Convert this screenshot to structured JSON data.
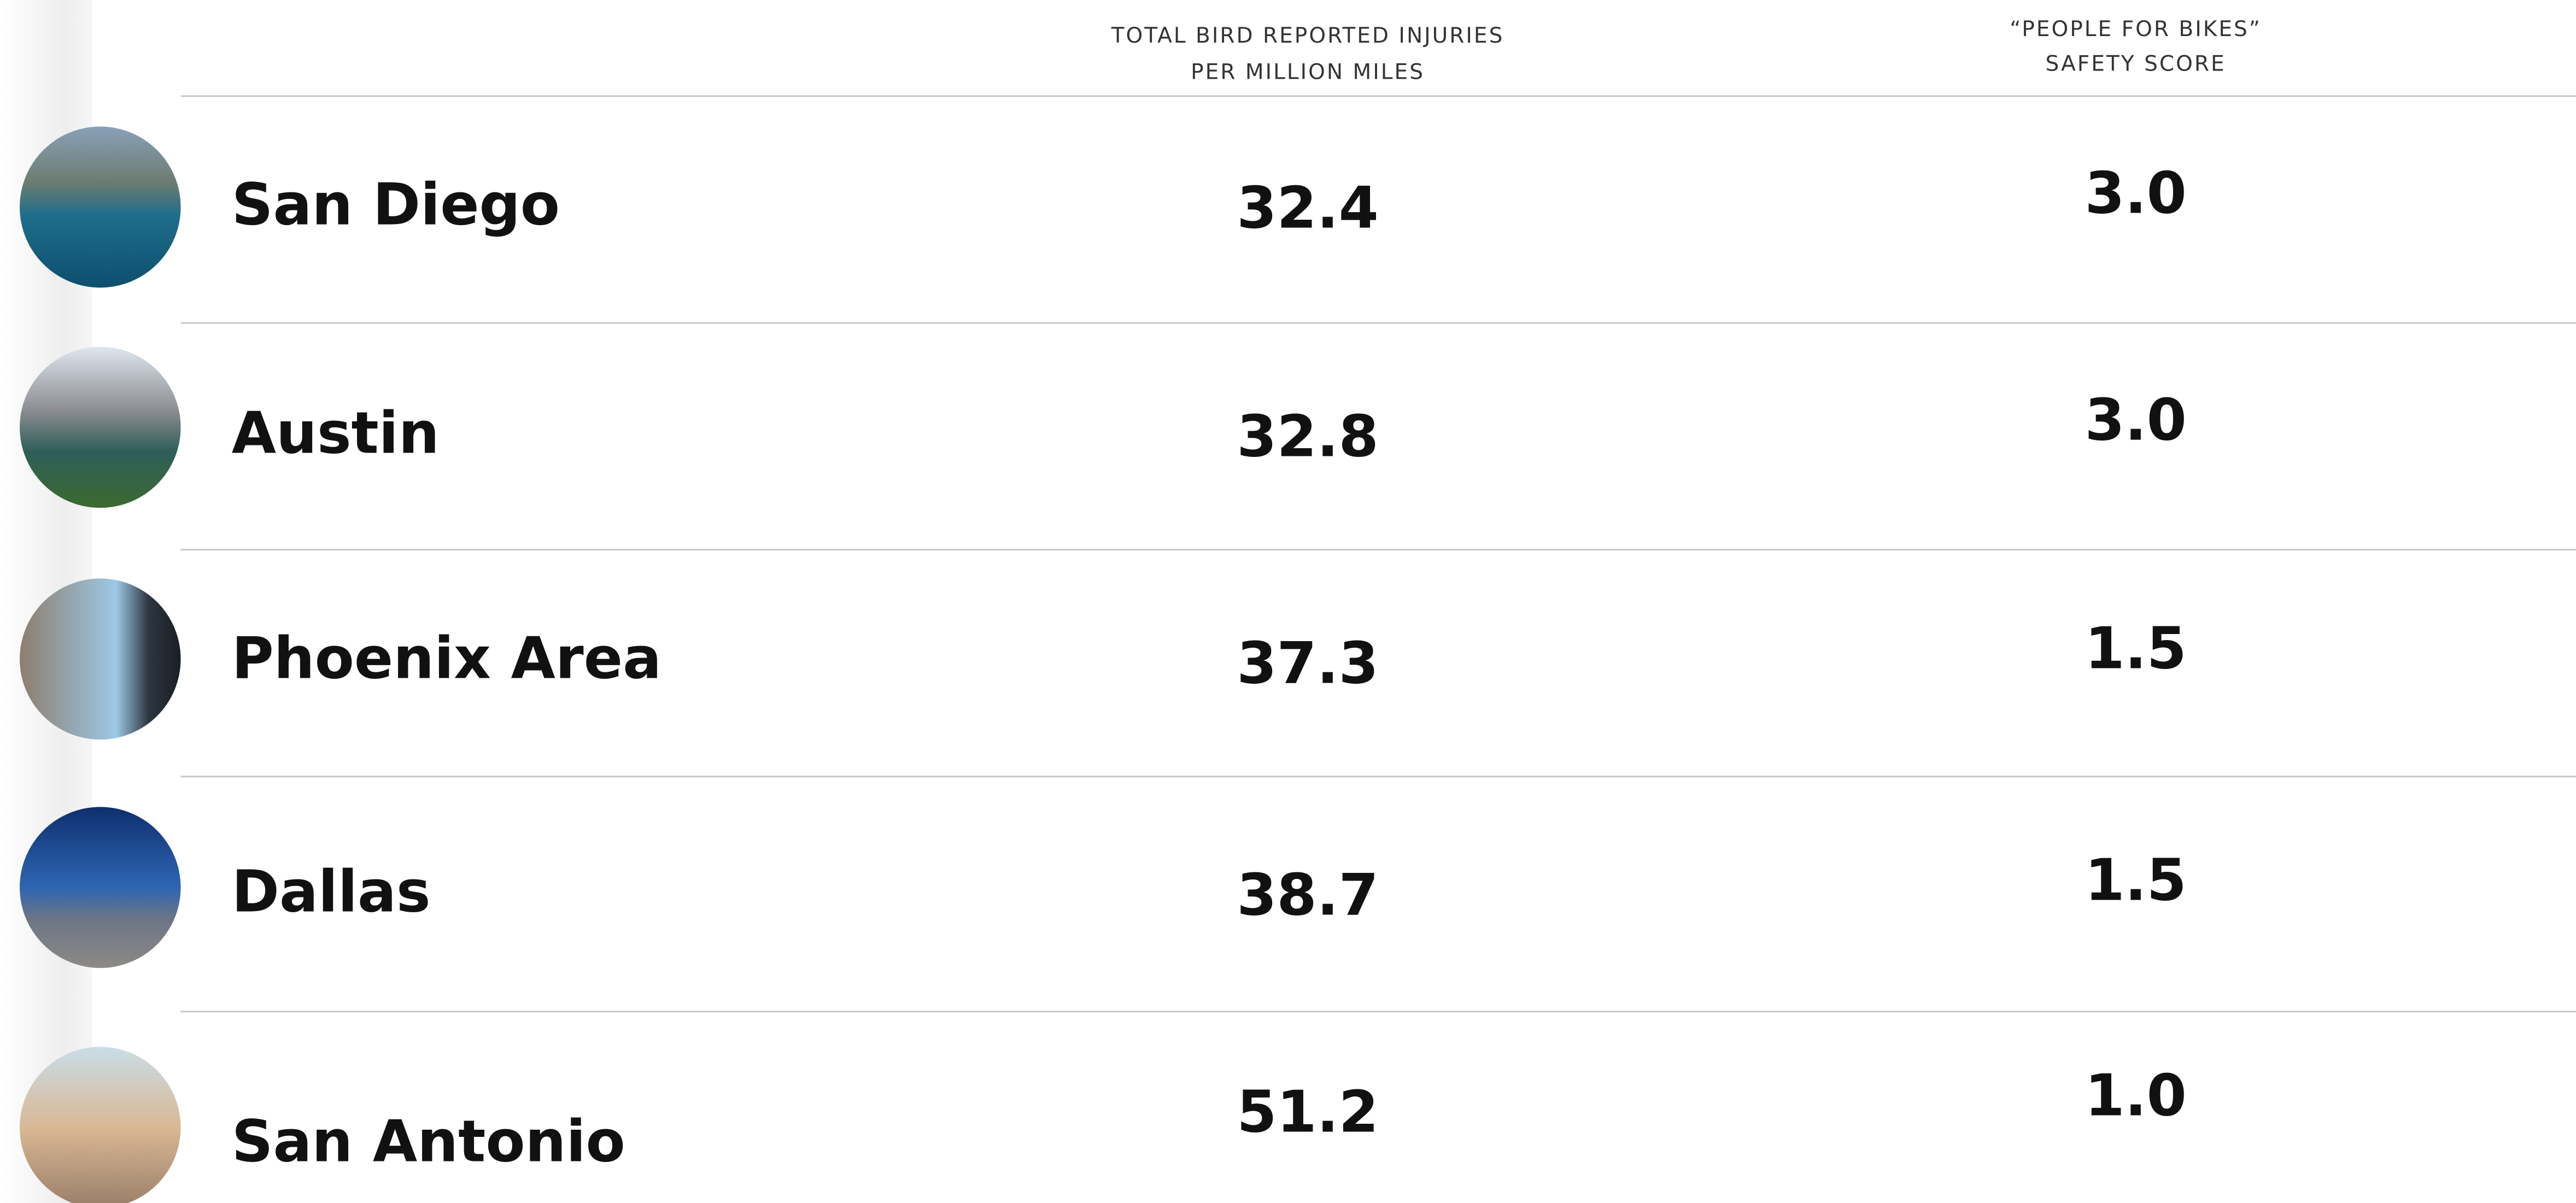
{
  "table": {
    "columns": [
      [
        "TOTAL BIRD REPORTED INJURIES",
        "PER MILLION MILES"
      ],
      [
        "“PEOPLE FOR BIKES”",
        "SAFETY SCORE"
      ]
    ],
    "rows": [
      [
        "San Diego",
        "32.4",
        "3.0"
      ],
      [
        "Austin",
        "32.8",
        "3.0"
      ],
      [
        "Phoenix Area",
        "37.3",
        "1.5"
      ],
      [
        "Dallas",
        "38.7",
        "1.5"
      ],
      [
        "San Antonio",
        "51.2",
        "1.0"
      ]
    ]
  }
}
